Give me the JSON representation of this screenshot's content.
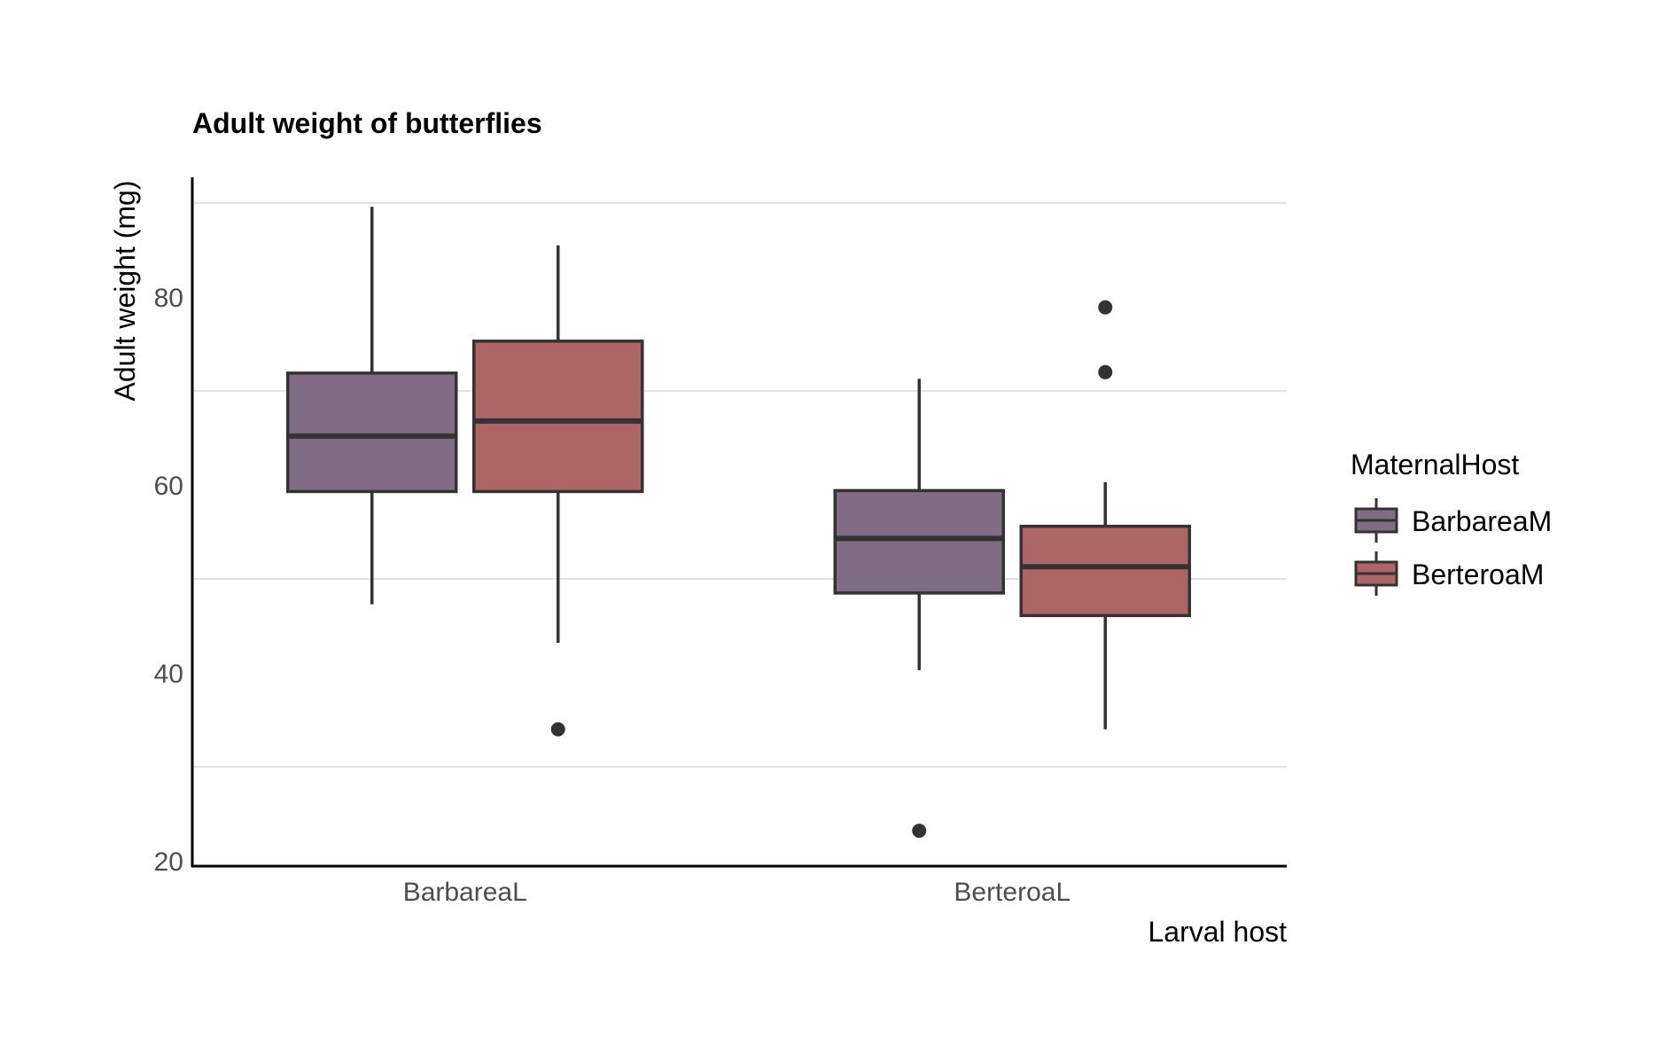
{
  "chart_data": {
    "type": "boxplot",
    "title": "Adult weight of butterflies",
    "xlabel": "Larval host",
    "ylabel": "Adult weight (mg)",
    "ylim": [
      20,
      92
    ],
    "yticks": [
      20,
      40,
      60,
      80
    ],
    "ygrid": [
      30,
      50,
      70,
      90
    ],
    "categories": [
      "BarbareaL",
      "BerteroaL"
    ],
    "legend": {
      "title": "MaternalHost",
      "position": "right"
    },
    "series": [
      {
        "name": "BarbareaM",
        "color": "#806c85",
        "boxes": [
          {
            "whisker_low": 47.3,
            "q1": 59.3,
            "median": 65.2,
            "q3": 71.9,
            "whisker_high": 89.6,
            "outliers": []
          },
          {
            "whisker_low": 40.3,
            "q1": 48.5,
            "median": 54.3,
            "q3": 59.4,
            "whisker_high": 71.3,
            "outliers": [
              23.2
            ]
          }
        ]
      },
      {
        "name": "BerteroaM",
        "color": "#ae6566",
        "boxes": [
          {
            "whisker_low": 43.2,
            "q1": 59.3,
            "median": 66.8,
            "q3": 75.3,
            "whisker_high": 85.5,
            "outliers": [
              34.0
            ]
          },
          {
            "whisker_low": 34.0,
            "q1": 46.1,
            "median": 51.3,
            "q3": 55.6,
            "whisker_high": 60.3,
            "outliers": [
              72.0,
              78.9
            ]
          }
        ]
      }
    ]
  }
}
